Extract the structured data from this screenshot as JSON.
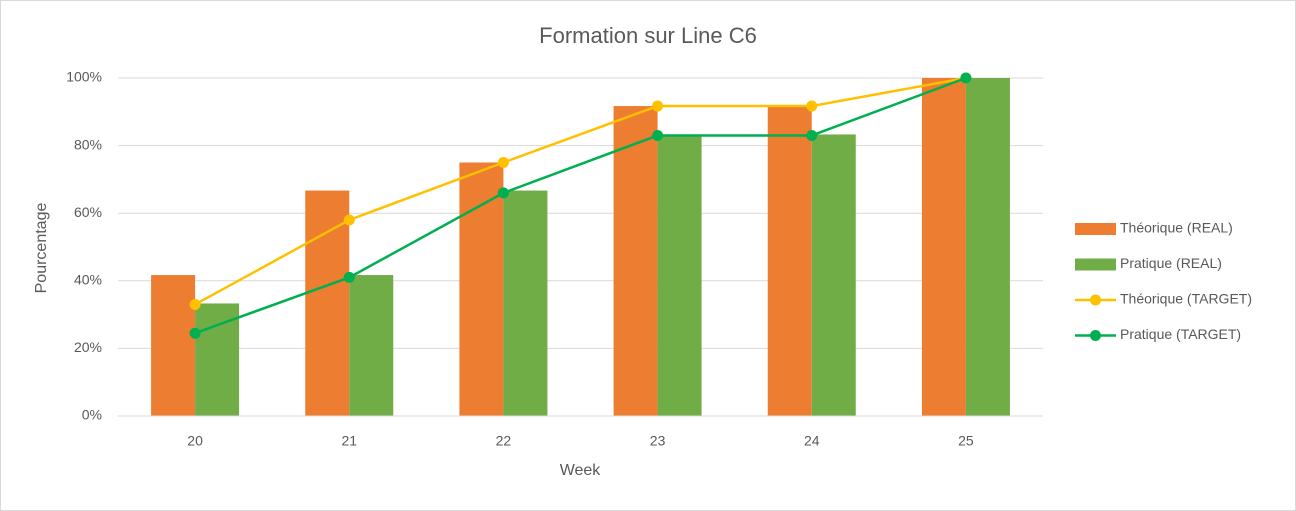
{
  "chart_data": {
    "type": "bar",
    "title": "Formation sur Line C6",
    "x_label": "Week",
    "y_label": "Pourcentage",
    "categories": [
      "20",
      "21",
      "22",
      "23",
      "24",
      "25"
    ],
    "series": [
      {
        "name": "Théorique (REAL)",
        "type": "bar",
        "color": "#ed7d31",
        "values": [
          41.7,
          66.7,
          75,
          91.7,
          91.7,
          100
        ]
      },
      {
        "name": "Pratique (REAL)",
        "type": "bar",
        "color": "#70ad47",
        "values": [
          33.3,
          41.7,
          66.7,
          83.3,
          83.3,
          100
        ]
      },
      {
        "name": "Théorique (TARGET)",
        "type": "line",
        "color": "#ffc000",
        "values": [
          33,
          58,
          75,
          91.7,
          91.7,
          100
        ]
      },
      {
        "name": "Pratique (TARGET)",
        "type": "line",
        "color": "#00b050",
        "values": [
          24.5,
          41,
          66,
          83,
          83,
          100
        ]
      }
    ],
    "ylim": [
      0,
      100
    ],
    "yticks": [
      {
        "value": 0,
        "label": "0%"
      },
      {
        "value": 20,
        "label": "20%"
      },
      {
        "value": 40,
        "label": "40%"
      },
      {
        "value": 60,
        "label": "60%"
      },
      {
        "value": 80,
        "label": "80%"
      },
      {
        "value": 100,
        "label": "100%"
      }
    ],
    "grid": true,
    "legend": "right"
  }
}
